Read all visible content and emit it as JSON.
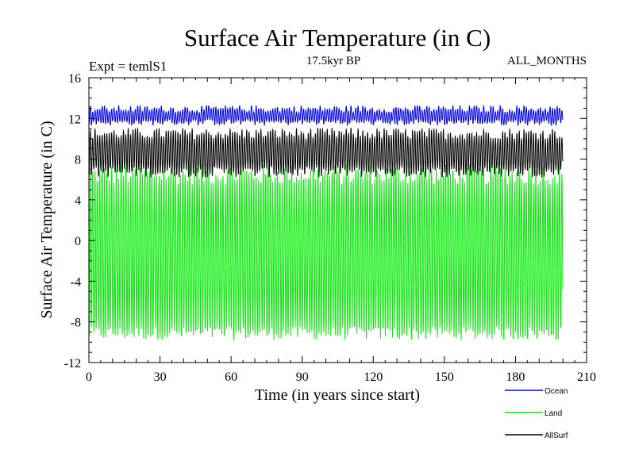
{
  "chart_data": {
    "type": "line",
    "title": "Surface Air Temperature (in C)",
    "subtitle_left": "Expt = temlS1",
    "subtitle_center": "17.5kyr BP",
    "subtitle_right": "ALL_MONTHS",
    "xlabel": "Time (in years since start)",
    "ylabel": "Surface Air Temperature (in C)",
    "xlim": [
      0,
      210
    ],
    "ylim": [
      -12,
      16
    ],
    "x_major_ticks": [
      0,
      30,
      60,
      90,
      120,
      150,
      180,
      210
    ],
    "y_major_ticks": [
      -12,
      -8,
      -4,
      0,
      4,
      8,
      12,
      16
    ],
    "x_tick_labels": [
      "0",
      "30",
      "60",
      "90",
      "120",
      "150",
      "180",
      "210"
    ],
    "y_tick_labels": [
      "-12",
      "-8",
      "-4",
      "0",
      "4",
      "8",
      "12",
      "16"
    ],
    "x_range_of_data": [
      0,
      200
    ],
    "series": [
      {
        "name": "Ocean",
        "color": "#0000ee",
        "summer_peak_range": [
          12.6,
          13.3
        ],
        "winter_trough_range": [
          11.3,
          11.9
        ]
      },
      {
        "name": "Land",
        "color": "#00ee00",
        "summer_peak_range": [
          5.5,
          7.5
        ],
        "winter_trough_range": [
          -9.8,
          -8.5
        ]
      },
      {
        "name": "AllSurf",
        "color": "#000000",
        "summer_peak_range": [
          10.0,
          11.1
        ],
        "winter_trough_range": [
          6.2,
          7.2
        ]
      }
    ],
    "legend": {
      "position": "bottom-right"
    }
  }
}
